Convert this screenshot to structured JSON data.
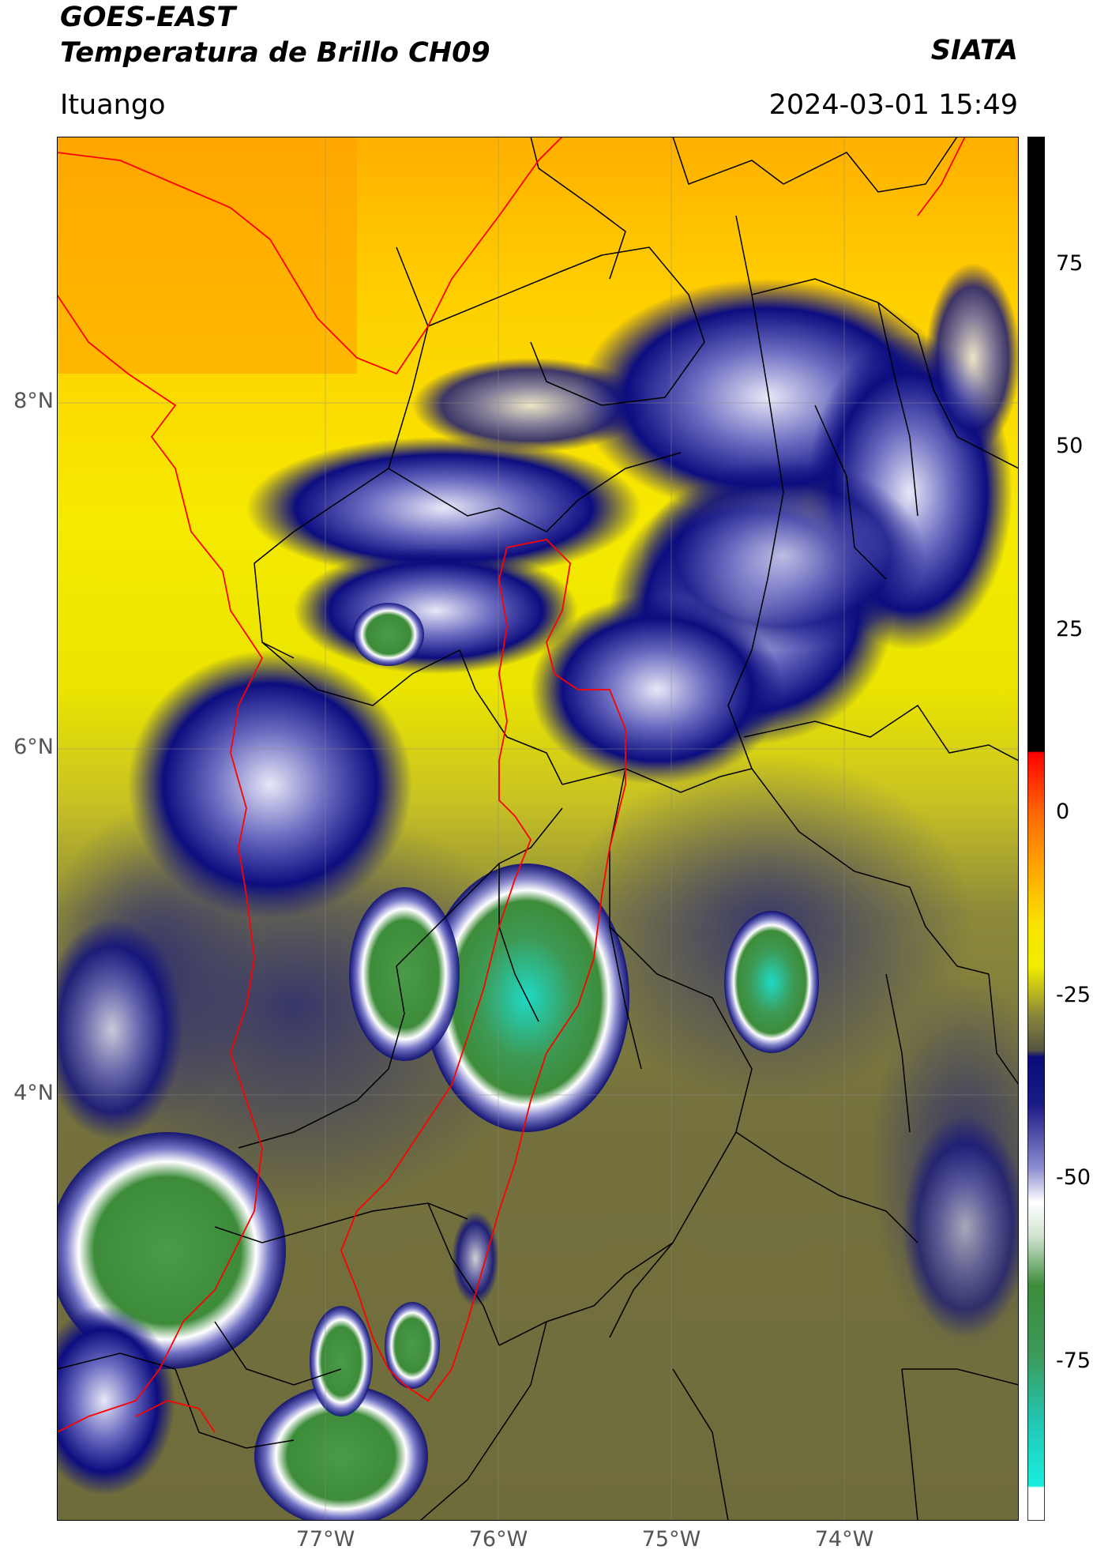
{
  "header": {
    "satellite": "GOES-EAST",
    "product": "Temperatura de Brillo CH09",
    "organization": "SIATA",
    "location": "Ituango",
    "timestamp": "2024-03-01 15:49"
  },
  "axes": {
    "lat_labels": [
      "8°N",
      "6°N",
      "4°N"
    ],
    "lon_labels": [
      "77°W",
      "76°W",
      "75°W",
      "74°W"
    ]
  },
  "colorbar": {
    "ticks": [
      "75",
      "50",
      "25",
      "0",
      "-25",
      "-50",
      "-75"
    ],
    "colors": {
      "black": "#000000",
      "red": "#ff0000",
      "orange": "#ff9a00",
      "yellow": "#f4f000",
      "olive": "#6e6e3a",
      "navy": "#0a0a7a",
      "white": "#ffffff",
      "green": "#3d8c3a",
      "cyan": "#19e3d2"
    }
  }
}
